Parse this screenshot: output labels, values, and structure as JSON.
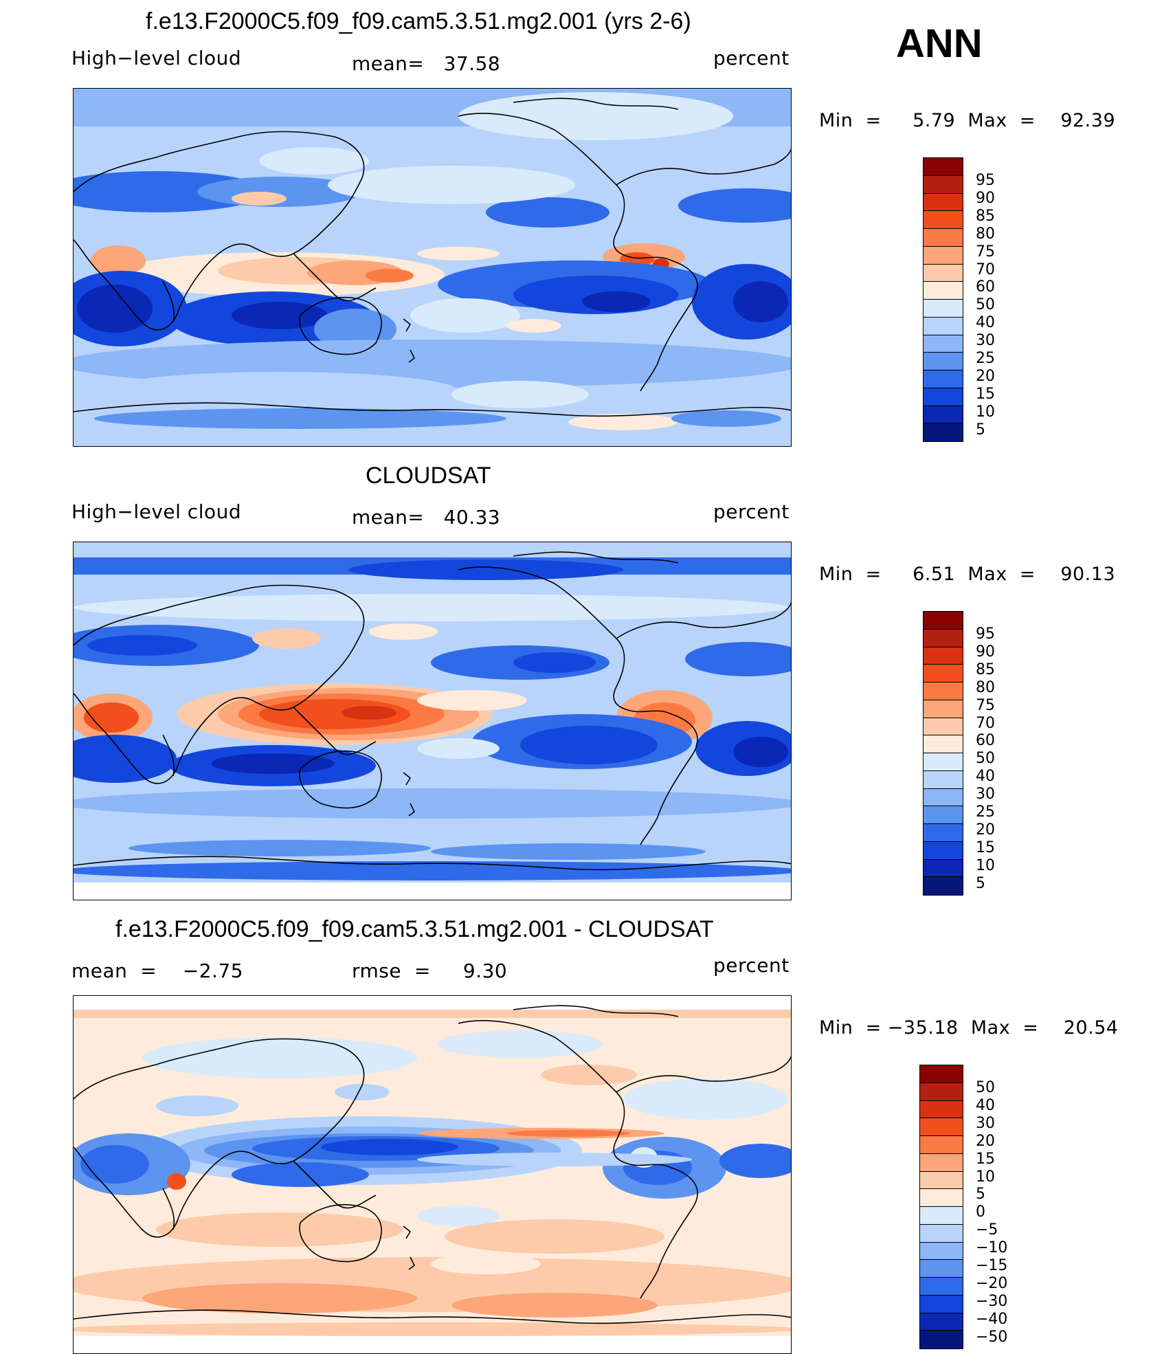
{
  "season": "ANN",
  "panels": [
    {
      "title": "f.e13.F2000C5.f09_f09.cam5.3.51.mg2.001 (yrs 2-6)",
      "left_label": "High−level cloud",
      "center_label": "mean=   37.58",
      "right_label": "percent",
      "minmax": "Min  =     5.79  Max  =    92.39",
      "colorbar_labels": [
        "95",
        "90",
        "85",
        "80",
        "75",
        "70",
        "60",
        "50",
        "40",
        "30",
        "25",
        "20",
        "15",
        "10",
        "5"
      ],
      "colors": [
        "#8b0000",
        "#b32110",
        "#d83210",
        "#f1501e",
        "#fb7a44",
        "#fda679",
        "#fdcbaa",
        "#feebdb",
        "#d9eafb",
        "#b8d4fa",
        "#8db7f6",
        "#5c94f0",
        "#2f6ae8",
        "#1346dc",
        "#0a28b5",
        "#06177c"
      ]
    },
    {
      "title": "CLOUDSAT",
      "left_label": "High−level cloud",
      "center_label": "mean=   40.33",
      "right_label": "percent",
      "minmax": "Min  =     6.51  Max  =    90.13",
      "colorbar_labels": [
        "95",
        "90",
        "85",
        "80",
        "75",
        "70",
        "60",
        "50",
        "40",
        "30",
        "25",
        "20",
        "15",
        "10",
        "5"
      ],
      "colors": [
        "#8b0000",
        "#b32110",
        "#d83210",
        "#f1501e",
        "#fb7a44",
        "#fda679",
        "#fdcbaa",
        "#feebdb",
        "#d9eafb",
        "#b8d4fa",
        "#8db7f6",
        "#5c94f0",
        "#2f6ae8",
        "#1346dc",
        "#0a28b5",
        "#06177c"
      ]
    },
    {
      "title": "f.e13.F2000C5.f09_f09.cam5.3.51.mg2.001 - CLOUDSAT",
      "left_label": "mean  =    −2.75",
      "center_label": "rmse  =     9.30",
      "right_label": "percent",
      "minmax": "Min  = −35.18  Max  =    20.54",
      "colorbar_labels": [
        "50",
        "40",
        "30",
        "20",
        "15",
        "10",
        "5",
        "0",
        "−5",
        "−10",
        "−15",
        "−20",
        "−30",
        "−40",
        "−50"
      ],
      "colors": [
        "#8b0000",
        "#b32110",
        "#d83210",
        "#f1501e",
        "#fb7a44",
        "#fda679",
        "#fdcbaa",
        "#feebdb",
        "#d9eafb",
        "#b8d4fa",
        "#8db7f6",
        "#5c94f0",
        "#2f6ae8",
        "#1346dc",
        "#0a28b5",
        "#06177c"
      ]
    }
  ]
}
